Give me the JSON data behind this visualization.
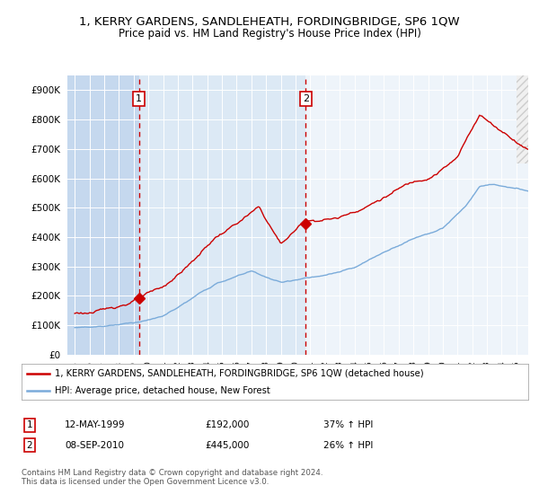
{
  "title": "1, KERRY GARDENS, SANDLEHEATH, FORDINGBRIDGE, SP6 1QW",
  "subtitle": "Price paid vs. HM Land Registry's House Price Index (HPI)",
  "red_label": "1, KERRY GARDENS, SANDLEHEATH, FORDINGBRIDGE, SP6 1QW (detached house)",
  "blue_label": "HPI: Average price, detached house, New Forest",
  "annotation1_date": "12-MAY-1999",
  "annotation1_price": "£192,000",
  "annotation1_hpi": "37% ↑ HPI",
  "annotation2_date": "08-SEP-2010",
  "annotation2_price": "£445,000",
  "annotation2_hpi": "26% ↑ HPI",
  "footnote": "Contains HM Land Registry data © Crown copyright and database right 2024.\nThis data is licensed under the Open Government Licence v3.0.",
  "bg_color": "#e8f0f8",
  "red_color": "#cc0000",
  "blue_color": "#7aabda",
  "title_fontsize": 9.5,
  "subtitle_fontsize": 8.5,
  "sale1_year": 1999.36,
  "sale1_price": 192000,
  "sale2_year": 2010.69,
  "sale2_price": 445000,
  "xmin": 1994.5,
  "xmax": 2025.8,
  "ylim": [
    0,
    950000
  ],
  "yticks": [
    0,
    100000,
    200000,
    300000,
    400000,
    500000,
    600000,
    700000,
    800000,
    900000
  ],
  "region1_color": "#c5d8ee",
  "region2_color": "#dce9f5",
  "region3_color": "#eef4fa"
}
